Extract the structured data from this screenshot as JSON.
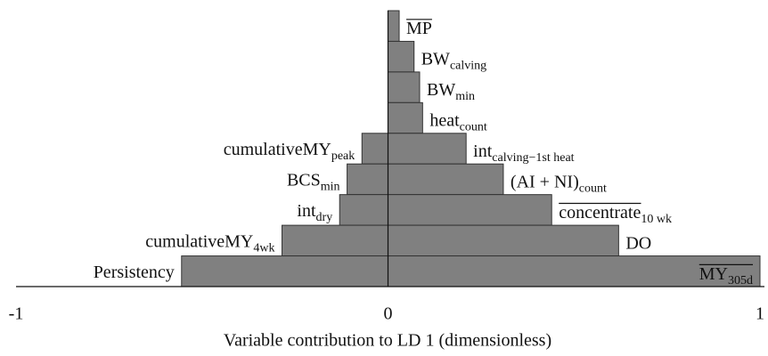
{
  "chart_data": {
    "type": "diverging-bar",
    "x_label": "Variable contribution to LD 1 (dimensionless)",
    "xlim": [
      -1,
      1
    ],
    "xticks": [
      -1,
      0,
      1
    ],
    "color": "#808080",
    "rows": [
      {
        "positive": {
          "label": {
            "text": "MP",
            "overline": "all"
          },
          "value": 0.03
        }
      },
      {
        "positive": {
          "label": {
            "text": "BW",
            "sub": "calving"
          },
          "value": 0.07
        }
      },
      {
        "positive": {
          "label": {
            "text": "BW",
            "sub": "min"
          },
          "value": 0.085
        }
      },
      {
        "positive": {
          "label": {
            "text": "heat",
            "sub": "count"
          },
          "value": 0.093
        }
      },
      {
        "negative": {
          "label": {
            "text": "cumulativeMY",
            "sub": "peak"
          },
          "value": -0.07
        },
        "positive": {
          "label": {
            "text": "int",
            "sub": "calving−1st heat"
          },
          "value": 0.21
        }
      },
      {
        "negative": {
          "label": {
            "text": "BCS",
            "sub": "min"
          },
          "value": -0.11
        },
        "positive": {
          "label": {
            "text": "(AI + NI)",
            "sub": "count"
          },
          "value": 0.31
        }
      },
      {
        "negative": {
          "label": {
            "text": "int",
            "sub": "dry"
          },
          "value": -0.13
        },
        "positive": {
          "label": {
            "text": "concentrate",
            "sub": "10 wk",
            "overline": "base"
          },
          "value": 0.44
        }
      },
      {
        "negative": {
          "label": {
            "text": "cumulativeMY",
            "sub": "4wk"
          },
          "value": -0.285
        },
        "positive": {
          "label": {
            "text": "DO"
          },
          "value": 0.62
        }
      },
      {
        "negative": {
          "label": {
            "text": "Persistency"
          },
          "value": -0.555
        },
        "positive": {
          "label": {
            "text": "MY",
            "sub": "305d",
            "overline": "all"
          },
          "value": 1.0
        }
      }
    ]
  }
}
